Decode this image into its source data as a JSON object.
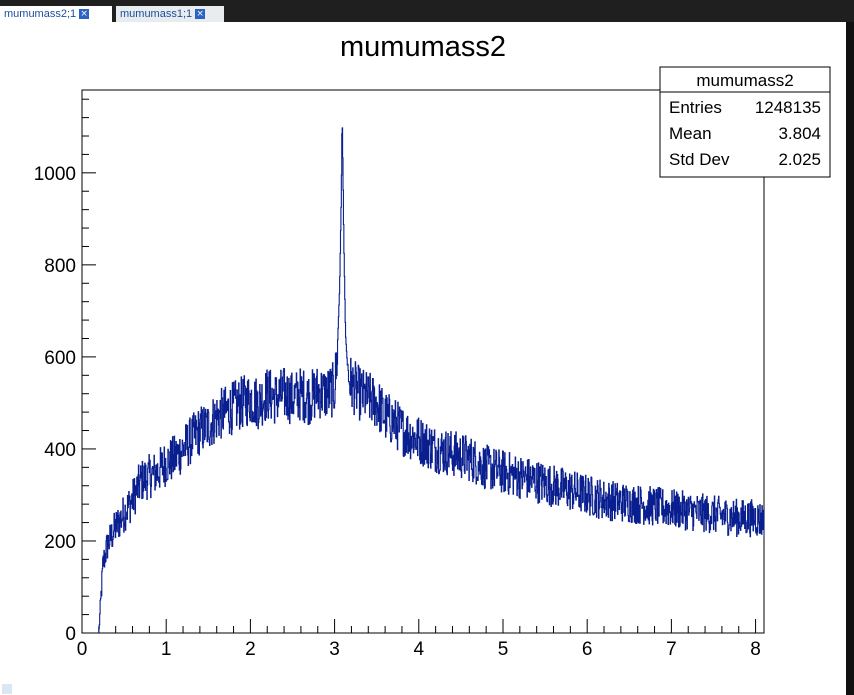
{
  "tabs": [
    {
      "label": "mumumass2;1",
      "active": true
    },
    {
      "label": "mumumass1;1",
      "active": false
    }
  ],
  "colors": {
    "line": "#0a1f8f",
    "frame": "#000000",
    "tab_text": "#1a4f9c"
  },
  "chart_data": {
    "type": "histogram",
    "title": "mumumass2",
    "xlim": [
      0,
      8.1
    ],
    "ylim": [
      0,
      1180
    ],
    "x_ticks": [
      0,
      1,
      2,
      3,
      4,
      5,
      6,
      7,
      8
    ],
    "y_ticks": [
      0,
      200,
      400,
      600,
      800,
      1000
    ],
    "grid": false,
    "stats_box": {
      "title": "mumumass2",
      "rows": [
        {
          "label": "Entries",
          "value": "1248135"
        },
        {
          "label": "Mean",
          "value": "3.804"
        },
        {
          "label": "Std Dev",
          "value": "2.025"
        }
      ]
    },
    "series": [
      {
        "x": [
          0.2,
          0.25,
          0.3,
          0.4,
          0.5,
          0.6,
          0.7,
          0.8,
          0.9,
          1.0,
          1.1,
          1.2,
          1.3,
          1.4,
          1.5,
          1.6,
          1.7,
          1.8,
          1.9,
          2.0,
          2.1,
          2.2,
          2.3,
          2.4,
          2.5,
          2.6,
          2.7,
          2.8,
          2.9,
          3.0,
          3.03,
          3.06,
          3.08,
          3.09,
          3.1,
          3.11,
          3.13,
          3.16,
          3.2,
          3.3,
          3.4,
          3.5,
          3.6,
          3.7,
          3.8,
          3.9,
          4.0,
          4.2,
          4.4,
          4.6,
          4.8,
          5.0,
          5.2,
          5.4,
          5.6,
          5.8,
          6.0,
          6.2,
          6.4,
          6.6,
          6.8,
          7.0,
          7.2,
          7.4,
          7.6,
          7.8,
          8.0,
          8.1
        ],
        "y": [
          0,
          150,
          190,
          230,
          260,
          290,
          330,
          340,
          350,
          370,
          380,
          400,
          420,
          440,
          450,
          470,
          480,
          490,
          500,
          510,
          500,
          520,
          510,
          520,
          510,
          520,
          510,
          525,
          520,
          530,
          600,
          750,
          950,
          1130,
          1000,
          850,
          650,
          560,
          540,
          520,
          510,
          500,
          470,
          460,
          440,
          430,
          420,
          400,
          390,
          380,
          360,
          350,
          340,
          330,
          320,
          310,
          300,
          290,
          285,
          280,
          275,
          270,
          265,
          260,
          255,
          250,
          250,
          245
        ]
      }
    ]
  }
}
